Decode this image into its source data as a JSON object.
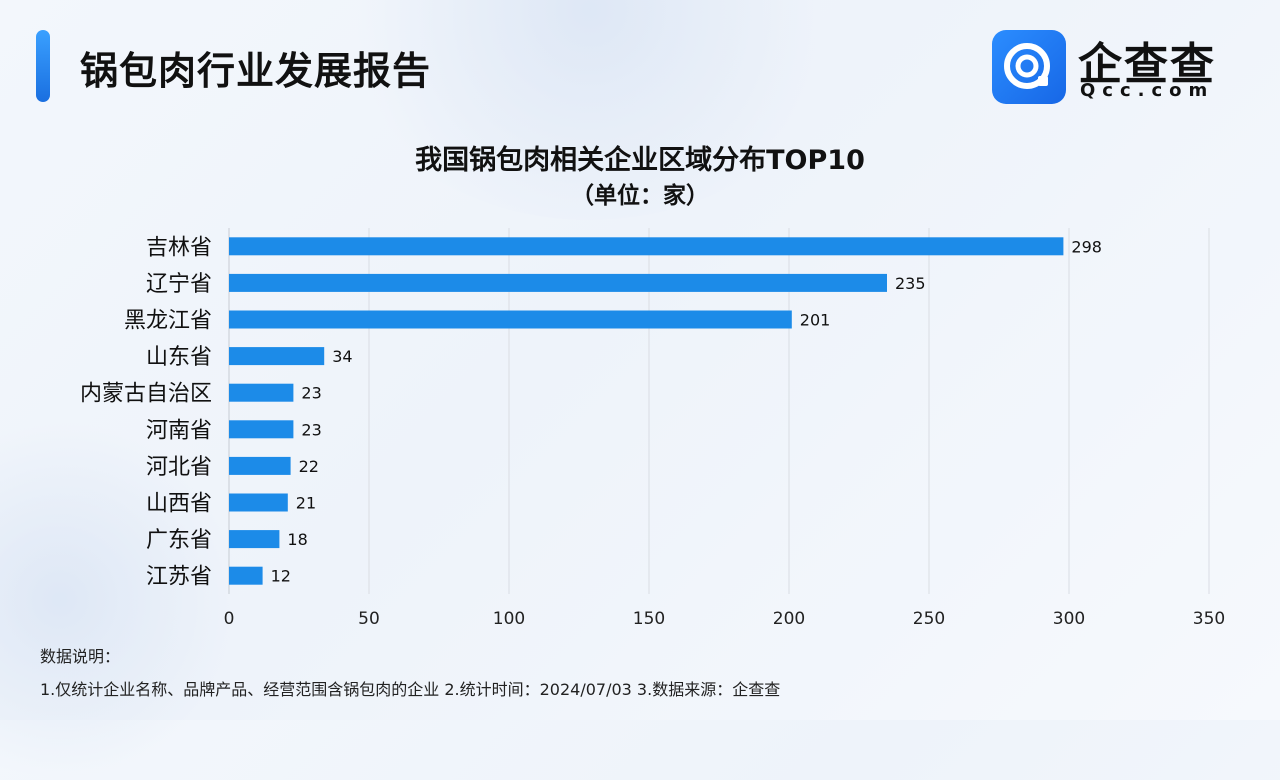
{
  "header": {
    "title": "锅包肉行业发展报告"
  },
  "brand": {
    "name": "企查查",
    "domain": "Qcc.com",
    "icon": "qcc-logo-icon",
    "color": "#1e7af0"
  },
  "chart_data": {
    "type": "bar",
    "orientation": "horizontal",
    "title": "我国锅包肉相关企业区域分布TOP10",
    "subtitle": "（单位：家）",
    "categories": [
      "吉林省",
      "辽宁省",
      "黑龙江省",
      "山东省",
      "内蒙古自治区",
      "河南省",
      "河北省",
      "山西省",
      "广东省",
      "江苏省"
    ],
    "values": [
      298,
      235,
      201,
      34,
      23,
      23,
      22,
      21,
      18,
      12
    ],
    "xlim": [
      0,
      350
    ],
    "xticks": [
      0,
      50,
      100,
      150,
      200,
      250,
      300,
      350
    ],
    "grid": true,
    "bar_color": "#1c8be8",
    "data_labels": true
  },
  "notes": {
    "title": "数据说明：",
    "line": "1.仅统计企业名称、品牌产品、经营范围含锅包肉的企业   2.统计时间：2024/07/03   3.数据来源：企查查"
  }
}
